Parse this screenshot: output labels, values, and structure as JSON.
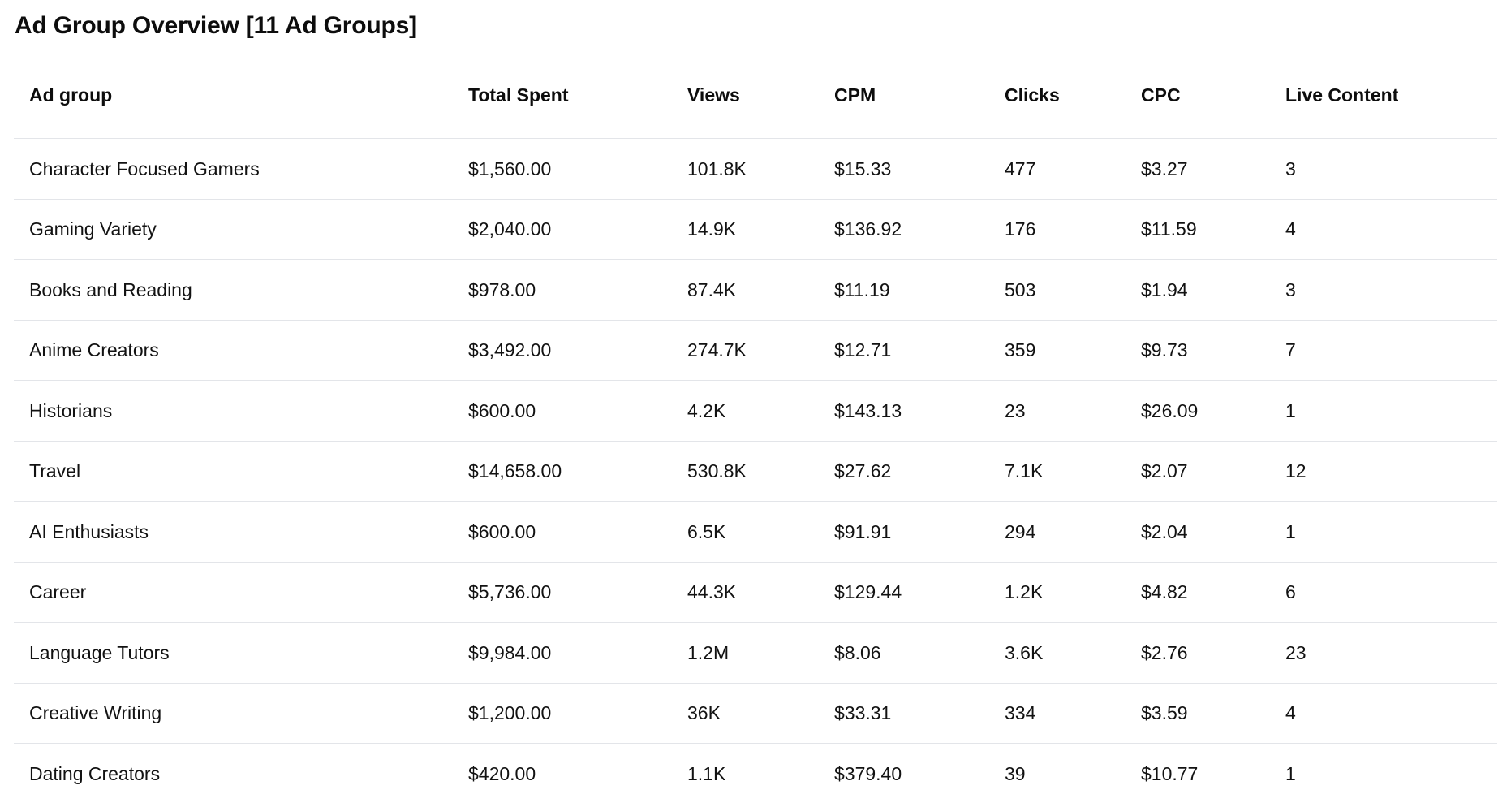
{
  "page": {
    "title": "Ad Group Overview [11 Ad Groups]",
    "ad_group_count": 11
  },
  "colors": {
    "background": "#ffffff",
    "text": "#121212",
    "divider": "#e3e5e9"
  },
  "table": {
    "columns": [
      {
        "key": "ad-group",
        "label": "Ad group"
      },
      {
        "key": "total-spent",
        "label": "Total Spent"
      },
      {
        "key": "views",
        "label": "Views"
      },
      {
        "key": "cpm",
        "label": "CPM"
      },
      {
        "key": "clicks",
        "label": "Clicks"
      },
      {
        "key": "cpc",
        "label": "CPC"
      },
      {
        "key": "live-content",
        "label": "Live Content"
      }
    ],
    "rows": [
      [
        "Character Focused Gamers",
        "$1,560.00",
        "101.8K",
        "$15.33",
        "477",
        "$3.27",
        "3"
      ],
      [
        "Gaming Variety",
        "$2,040.00",
        "14.9K",
        "$136.92",
        "176",
        "$11.59",
        "4"
      ],
      [
        "Books and Reading",
        "$978.00",
        "87.4K",
        "$11.19",
        "503",
        "$1.94",
        "3"
      ],
      [
        "Anime Creators",
        "$3,492.00",
        "274.7K",
        "$12.71",
        "359",
        "$9.73",
        "7"
      ],
      [
        "Historians",
        "$600.00",
        "4.2K",
        "$143.13",
        "23",
        "$26.09",
        "1"
      ],
      [
        "Travel",
        "$14,658.00",
        "530.8K",
        "$27.62",
        "7.1K",
        "$2.07",
        "12"
      ],
      [
        "AI Enthusiasts",
        "$600.00",
        "6.5K",
        "$91.91",
        "294",
        "$2.04",
        "1"
      ],
      [
        "Career",
        "$5,736.00",
        "44.3K",
        "$129.44",
        "1.2K",
        "$4.82",
        "6"
      ],
      [
        "Language Tutors",
        "$9,984.00",
        "1.2M",
        "$8.06",
        "3.6K",
        "$2.76",
        "23"
      ],
      [
        "Creative Writing",
        "$1,200.00",
        "36K",
        "$33.31",
        "334",
        "$3.59",
        "4"
      ],
      [
        "Dating Creators",
        "$420.00",
        "1.1K",
        "$379.40",
        "39",
        "$10.77",
        "1"
      ]
    ]
  }
}
